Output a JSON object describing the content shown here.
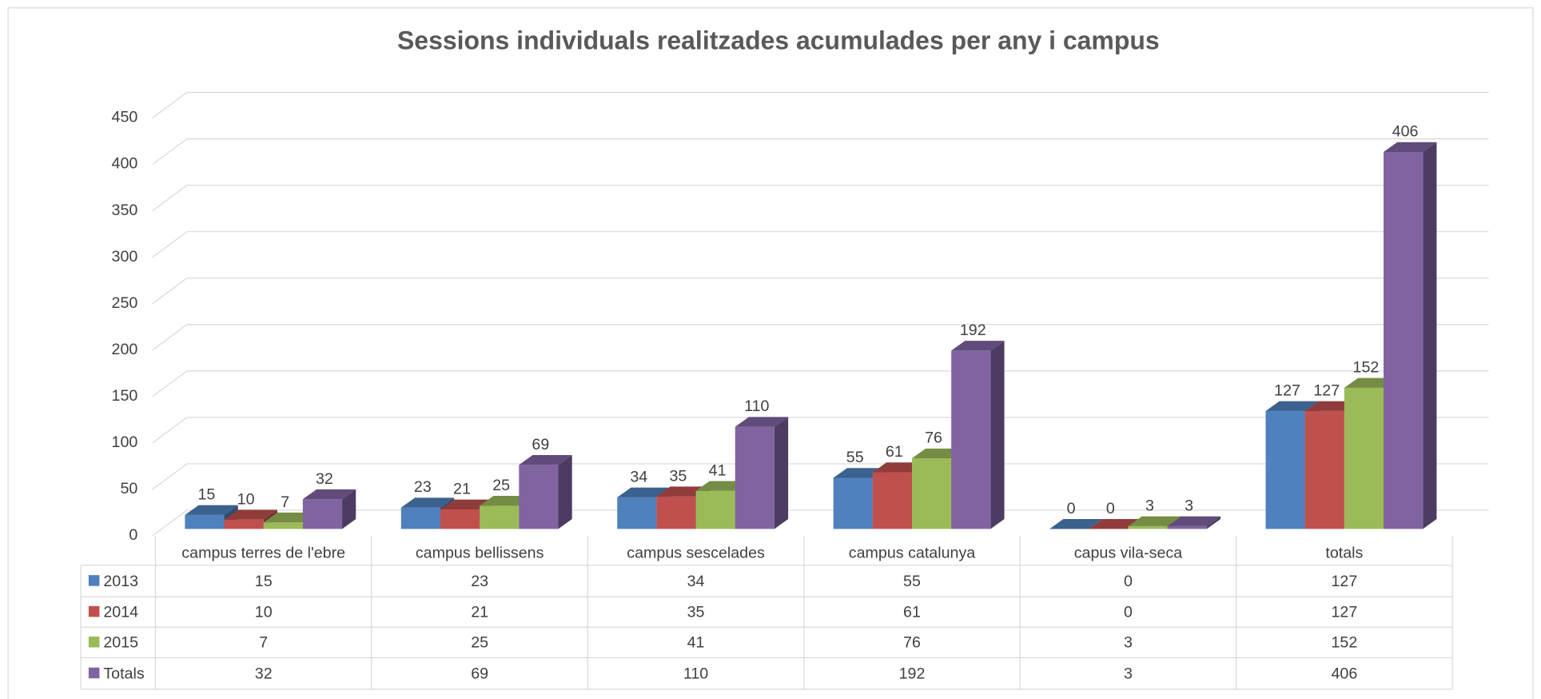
{
  "chart_data": {
    "type": "bar3d",
    "title": "Sessions individuals realitzades acumulades per any i campus",
    "categories": [
      "campus terres de l'ebre",
      "campus bellissens",
      "campus sescelades",
      "campus catalunya",
      "capus vila-seca",
      "totals"
    ],
    "series": [
      {
        "name": "2013",
        "color": "#4f81bd",
        "values": [
          15,
          23,
          34,
          55,
          0,
          127
        ]
      },
      {
        "name": "2014",
        "color": "#c0504d",
        "values": [
          10,
          21,
          35,
          61,
          0,
          127
        ]
      },
      {
        "name": "2015",
        "color": "#9bbb59",
        "values": [
          7,
          25,
          41,
          76,
          3,
          152
        ]
      },
      {
        "name": "Totals",
        "color": "#8064a2",
        "values": [
          32,
          69,
          110,
          192,
          3,
          406
        ]
      }
    ],
    "ylim": [
      0,
      450
    ],
    "yticks": [
      0,
      50,
      100,
      150,
      200,
      250,
      300,
      350,
      400,
      450
    ],
    "grid": true,
    "data_table": true
  }
}
